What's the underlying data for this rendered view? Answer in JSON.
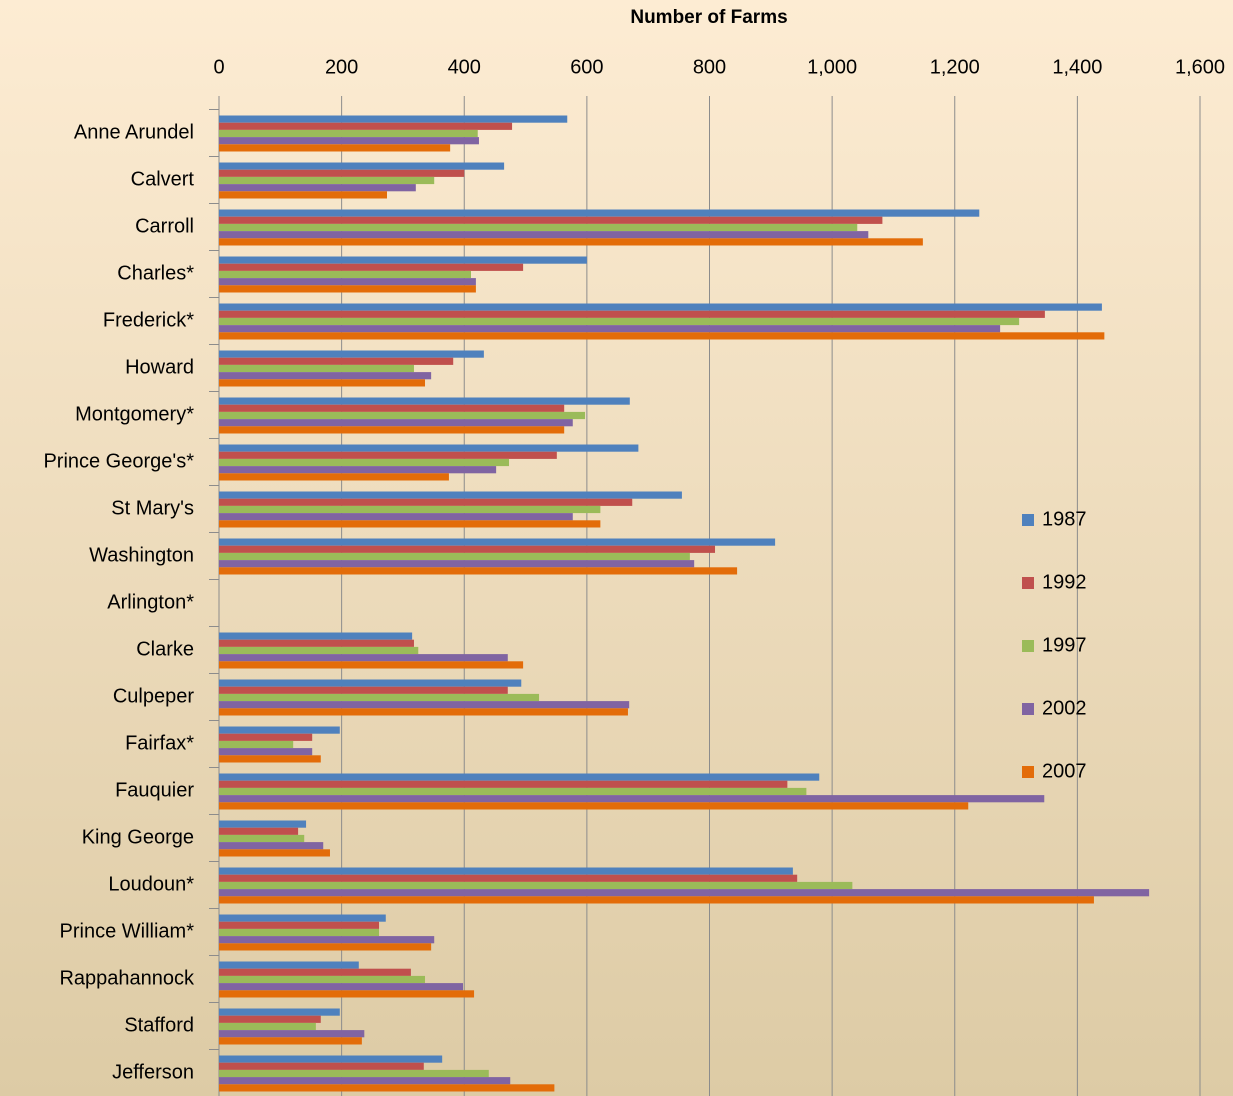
{
  "chart_data": {
    "type": "hbar",
    "title": "Number of Farms",
    "categories": [
      "Anne Arundel",
      "Calvert",
      "Carroll",
      "Charles*",
      "Frederick*",
      "Howard",
      "Montgomery*",
      "Prince George's*",
      "St Mary's",
      "Washington",
      "Arlington*",
      "Clarke",
      "Culpeper",
      "Fairfax*",
      "Fauquier",
      "King George",
      "Loudoun*",
      "Prince William*",
      "Rappahannock",
      "Stafford",
      "Jefferson"
    ],
    "series": [
      {
        "name": "1987",
        "color": "#4f81bd",
        "values": [
          568,
          465,
          1240,
          600,
          1440,
          432,
          670,
          684,
          755,
          907,
          null,
          315,
          493,
          197,
          979,
          142,
          936,
          272,
          228,
          197,
          364
        ]
      },
      {
        "name": "1992",
        "color": "#c0504d",
        "values": [
          478,
          400,
          1082,
          496,
          1347,
          382,
          563,
          551,
          674,
          809,
          null,
          318,
          471,
          152,
          927,
          129,
          943,
          261,
          313,
          166,
          334
        ]
      },
      {
        "name": "1997",
        "color": "#9bbb59",
        "values": [
          422,
          351,
          1041,
          411,
          1305,
          318,
          597,
          473,
          622,
          768,
          null,
          325,
          522,
          121,
          958,
          139,
          1033,
          261,
          336,
          158,
          440
        ]
      },
      {
        "name": "2002",
        "color": "#8064a2",
        "values": [
          424,
          321,
          1059,
          419,
          1274,
          346,
          577,
          452,
          577,
          775,
          null,
          471,
          669,
          152,
          1346,
          170,
          1517,
          351,
          398,
          237,
          475
        ]
      },
      {
        "name": "2007",
        "color": "#e36c09",
        "values": [
          377,
          274,
          1148,
          419,
          1444,
          336,
          563,
          375,
          622,
          845,
          null,
          496,
          667,
          166,
          1222,
          181,
          1427,
          346,
          416,
          233,
          547
        ]
      }
    ],
    "xlim": [
      0,
      1600
    ],
    "xticks": [
      0,
      200,
      400,
      600,
      800,
      {
        "value": 1000,
        "label": "1,000"
      },
      {
        "value": 1200,
        "label": "1,200"
      },
      {
        "value": 1400,
        "label": "1,400"
      },
      {
        "value": 1600,
        "label": "1,600"
      }
    ],
    "grid": true
  }
}
